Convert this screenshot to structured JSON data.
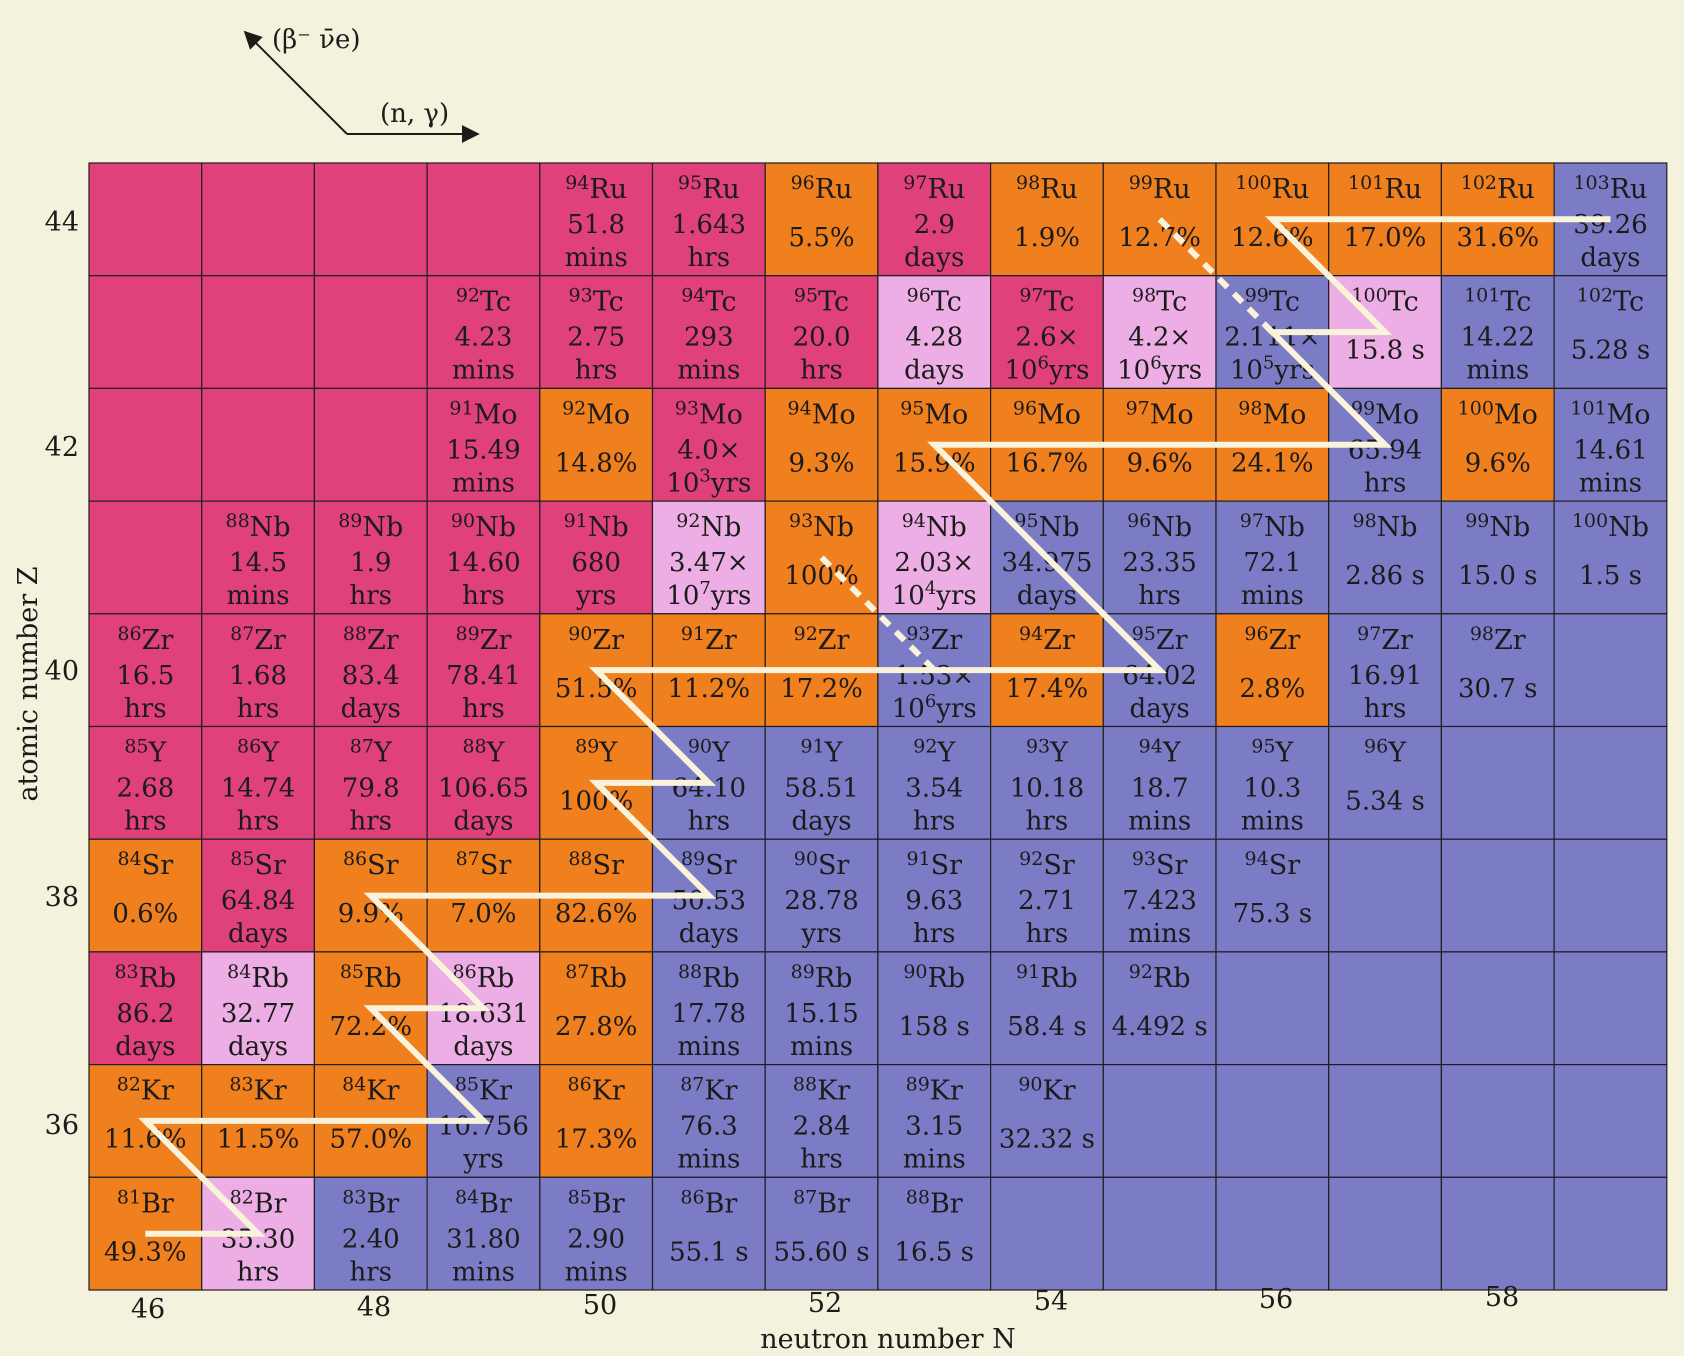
{
  "figure": {
    "legend": {
      "beta_label": "(β⁻ ν̄e)",
      "ng_label": "(n, γ)"
    },
    "xlabel": "neutron number N",
    "ylabel": "atomic number Z",
    "x_ticks": [
      "46",
      "48",
      "50",
      "52",
      "54",
      "56",
      "58"
    ],
    "y_ticks": [
      "36",
      "38",
      "40",
      "42",
      "44"
    ]
  },
  "colors": {
    "stable": "#f07f1e",
    "proton_rich": "#e0417a",
    "long_lived": "#ecaee4",
    "neutron_rich": "#7c7cc6",
    "path": "#f8f3da"
  },
  "chart_data": {
    "type": "heatmap",
    "n_range": [
      46,
      59
    ],
    "z_range": [
      35,
      44
    ],
    "elements": {
      "35": "Br",
      "36": "Kr",
      "37": "Rb",
      "38": "Sr",
      "39": "Y",
      "40": "Zr",
      "41": "Nb",
      "42": "Mo",
      "43": "Tc",
      "44": "Ru"
    },
    "cells": [
      {
        "z": 44,
        "n": 50,
        "a": "94",
        "el": "Ru",
        "l1": "51.8",
        "l2": "mins",
        "cat": "proton_rich"
      },
      {
        "z": 44,
        "n": 51,
        "a": "95",
        "el": "Ru",
        "l1": "1.643",
        "l2": "hrs",
        "cat": "proton_rich"
      },
      {
        "z": 44,
        "n": 52,
        "a": "96",
        "el": "Ru",
        "l1": "5.5%",
        "l2": "",
        "cat": "stable"
      },
      {
        "z": 44,
        "n": 53,
        "a": "97",
        "el": "Ru",
        "l1": "2.9",
        "l2": "days",
        "cat": "proton_rich"
      },
      {
        "z": 44,
        "n": 54,
        "a": "98",
        "el": "Ru",
        "l1": "1.9%",
        "l2": "",
        "cat": "stable"
      },
      {
        "z": 44,
        "n": 55,
        "a": "99",
        "el": "Ru",
        "l1": "12.7%",
        "l2": "",
        "cat": "stable"
      },
      {
        "z": 44,
        "n": 56,
        "a": "100",
        "el": "Ru",
        "l1": "12.6%",
        "l2": "",
        "cat": "stable"
      },
      {
        "z": 44,
        "n": 57,
        "a": "101",
        "el": "Ru",
        "l1": "17.0%",
        "l2": "",
        "cat": "stable"
      },
      {
        "z": 44,
        "n": 58,
        "a": "102",
        "el": "Ru",
        "l1": "31.6%",
        "l2": "",
        "cat": "stable"
      },
      {
        "z": 44,
        "n": 59,
        "a": "103",
        "el": "Ru",
        "l1": "39.26",
        "l2": "days",
        "cat": "neutron_rich"
      },
      {
        "z": 43,
        "n": 49,
        "a": "92",
        "el": "Tc",
        "l1": "4.23",
        "l2": "mins",
        "cat": "proton_rich"
      },
      {
        "z": 43,
        "n": 50,
        "a": "93",
        "el": "Tc",
        "l1": "2.75",
        "l2": "hrs",
        "cat": "proton_rich"
      },
      {
        "z": 43,
        "n": 51,
        "a": "94",
        "el": "Tc",
        "l1": "293",
        "l2": "mins",
        "cat": "proton_rich"
      },
      {
        "z": 43,
        "n": 52,
        "a": "95",
        "el": "Tc",
        "l1": "20.0",
        "l2": "hrs",
        "cat": "proton_rich"
      },
      {
        "z": 43,
        "n": 53,
        "a": "96",
        "el": "Tc",
        "l1": "4.28",
        "l2": "days",
        "cat": "long_lived"
      },
      {
        "z": 43,
        "n": 54,
        "a": "97",
        "el": "Tc",
        "l1": "2.6×",
        "l2": "10",
        "l2sup": "6",
        "l2tail": "yrs",
        "cat": "proton_rich"
      },
      {
        "z": 43,
        "n": 55,
        "a": "98",
        "el": "Tc",
        "l1": "4.2×",
        "l2": "10",
        "l2sup": "6",
        "l2tail": "yrs",
        "cat": "long_lived"
      },
      {
        "z": 43,
        "n": 56,
        "a": "99",
        "el": "Tc",
        "l1": "2.111×",
        "l2": "10",
        "l2sup": "5",
        "l2tail": "yrs",
        "cat": "neutron_rich"
      },
      {
        "z": 43,
        "n": 57,
        "a": "100",
        "el": "Tc",
        "l1": "15.8 s",
        "l2": "",
        "cat": "long_lived"
      },
      {
        "z": 43,
        "n": 58,
        "a": "101",
        "el": "Tc",
        "l1": "14.22",
        "l2": "mins",
        "cat": "neutron_rich"
      },
      {
        "z": 43,
        "n": 59,
        "a": "102",
        "el": "Tc",
        "l1": "5.28 s",
        "l2": "",
        "cat": "neutron_rich"
      },
      {
        "z": 42,
        "n": 49,
        "a": "91",
        "el": "Mo",
        "l1": "15.49",
        "l2": "mins",
        "cat": "proton_rich"
      },
      {
        "z": 42,
        "n": 50,
        "a": "92",
        "el": "Mo",
        "l1": "14.8%",
        "l2": "",
        "cat": "stable"
      },
      {
        "z": 42,
        "n": 51,
        "a": "93",
        "el": "Mo",
        "l1": "4.0×",
        "l2": "10",
        "l2sup": "3",
        "l2tail": "yrs",
        "cat": "proton_rich"
      },
      {
        "z": 42,
        "n": 52,
        "a": "94",
        "el": "Mo",
        "l1": "9.3%",
        "l2": "",
        "cat": "stable"
      },
      {
        "z": 42,
        "n": 53,
        "a": "95",
        "el": "Mo",
        "l1": "15.9%",
        "l2": "",
        "cat": "stable"
      },
      {
        "z": 42,
        "n": 54,
        "a": "96",
        "el": "Mo",
        "l1": "16.7%",
        "l2": "",
        "cat": "stable"
      },
      {
        "z": 42,
        "n": 55,
        "a": "97",
        "el": "Mo",
        "l1": "9.6%",
        "l2": "",
        "cat": "stable"
      },
      {
        "z": 42,
        "n": 56,
        "a": "98",
        "el": "Mo",
        "l1": "24.1%",
        "l2": "",
        "cat": "stable"
      },
      {
        "z": 42,
        "n": 57,
        "a": "99",
        "el": "Mo",
        "l1": "65.94",
        "l2": "hrs",
        "cat": "neutron_rich"
      },
      {
        "z": 42,
        "n": 58,
        "a": "100",
        "el": "Mo",
        "l1": "9.6%",
        "l2": "",
        "cat": "stable"
      },
      {
        "z": 42,
        "n": 59,
        "a": "101",
        "el": "Mo",
        "l1": "14.61",
        "l2": "mins",
        "cat": "neutron_rich"
      },
      {
        "z": 41,
        "n": 47,
        "a": "88",
        "el": "Nb",
        "l1": "14.5",
        "l2": "mins",
        "cat": "proton_rich"
      },
      {
        "z": 41,
        "n": 48,
        "a": "89",
        "el": "Nb",
        "l1": "1.9",
        "l2": "hrs",
        "cat": "proton_rich"
      },
      {
        "z": 41,
        "n": 49,
        "a": "90",
        "el": "Nb",
        "l1": "14.60",
        "l2": "hrs",
        "cat": "proton_rich"
      },
      {
        "z": 41,
        "n": 50,
        "a": "91",
        "el": "Nb",
        "l1": "680",
        "l2": "yrs",
        "cat": "proton_rich"
      },
      {
        "z": 41,
        "n": 51,
        "a": "92",
        "el": "Nb",
        "l1": "3.47×",
        "l2": "10",
        "l2sup": "7",
        "l2tail": "yrs",
        "cat": "long_lived"
      },
      {
        "z": 41,
        "n": 52,
        "a": "93",
        "el": "Nb",
        "l1": "100%",
        "l2": "",
        "cat": "stable"
      },
      {
        "z": 41,
        "n": 53,
        "a": "94",
        "el": "Nb",
        "l1": "2.03×",
        "l2": "10",
        "l2sup": "4",
        "l2tail": "yrs",
        "cat": "long_lived"
      },
      {
        "z": 41,
        "n": 54,
        "a": "95",
        "el": "Nb",
        "l1": "34.975",
        "l2": "days",
        "cat": "neutron_rich"
      },
      {
        "z": 41,
        "n": 55,
        "a": "96",
        "el": "Nb",
        "l1": "23.35",
        "l2": "hrs",
        "cat": "neutron_rich"
      },
      {
        "z": 41,
        "n": 56,
        "a": "97",
        "el": "Nb",
        "l1": "72.1",
        "l2": "mins",
        "cat": "neutron_rich"
      },
      {
        "z": 41,
        "n": 57,
        "a": "98",
        "el": "Nb",
        "l1": "2.86 s",
        "l2": "",
        "cat": "neutron_rich"
      },
      {
        "z": 41,
        "n": 58,
        "a": "99",
        "el": "Nb",
        "l1": "15.0 s",
        "l2": "",
        "cat": "neutron_rich"
      },
      {
        "z": 41,
        "n": 59,
        "a": "100",
        "el": "Nb",
        "l1": "1.5 s",
        "l2": "",
        "cat": "neutron_rich"
      },
      {
        "z": 40,
        "n": 46,
        "a": "86",
        "el": "Zr",
        "l1": "16.5",
        "l2": "hrs",
        "cat": "proton_rich"
      },
      {
        "z": 40,
        "n": 47,
        "a": "87",
        "el": "Zr",
        "l1": "1.68",
        "l2": "hrs",
        "cat": "proton_rich"
      },
      {
        "z": 40,
        "n": 48,
        "a": "88",
        "el": "Zr",
        "l1": "83.4",
        "l2": "days",
        "cat": "proton_rich"
      },
      {
        "z": 40,
        "n": 49,
        "a": "89",
        "el": "Zr",
        "l1": "78.41",
        "l2": "hrs",
        "cat": "proton_rich"
      },
      {
        "z": 40,
        "n": 50,
        "a": "90",
        "el": "Zr",
        "l1": "51.5%",
        "l2": "",
        "cat": "stable"
      },
      {
        "z": 40,
        "n": 51,
        "a": "91",
        "el": "Zr",
        "l1": "11.2%",
        "l2": "",
        "cat": "stable"
      },
      {
        "z": 40,
        "n": 52,
        "a": "92",
        "el": "Zr",
        "l1": "17.2%",
        "l2": "",
        "cat": "stable"
      },
      {
        "z": 40,
        "n": 53,
        "a": "93",
        "el": "Zr",
        "l1": "1.53×",
        "l2": "10",
        "l2sup": "6",
        "l2tail": "yrs",
        "cat": "neutron_rich"
      },
      {
        "z": 40,
        "n": 54,
        "a": "94",
        "el": "Zr",
        "l1": "17.4%",
        "l2": "",
        "cat": "stable"
      },
      {
        "z": 40,
        "n": 55,
        "a": "95",
        "el": "Zr",
        "l1": "64.02",
        "l2": "days",
        "cat": "neutron_rich"
      },
      {
        "z": 40,
        "n": 56,
        "a": "96",
        "el": "Zr",
        "l1": "2.8%",
        "l2": "",
        "cat": "stable"
      },
      {
        "z": 40,
        "n": 57,
        "a": "97",
        "el": "Zr",
        "l1": "16.91",
        "l2": "hrs",
        "cat": "neutron_rich"
      },
      {
        "z": 40,
        "n": 58,
        "a": "98",
        "el": "Zr",
        "l1": "30.7 s",
        "l2": "",
        "cat": "neutron_rich"
      },
      {
        "z": 39,
        "n": 46,
        "a": "85",
        "el": "Y",
        "l1": "2.68",
        "l2": "hrs",
        "cat": "proton_rich"
      },
      {
        "z": 39,
        "n": 47,
        "a": "86",
        "el": "Y",
        "l1": "14.74",
        "l2": "hrs",
        "cat": "proton_rich"
      },
      {
        "z": 39,
        "n": 48,
        "a": "87",
        "el": "Y",
        "l1": "79.8",
        "l2": "hrs",
        "cat": "proton_rich"
      },
      {
        "z": 39,
        "n": 49,
        "a": "88",
        "el": "Y",
        "l1": "106.65",
        "l2": "days",
        "cat": "proton_rich"
      },
      {
        "z": 39,
        "n": 50,
        "a": "89",
        "el": "Y",
        "l1": "100%",
        "l2": "",
        "cat": "stable"
      },
      {
        "z": 39,
        "n": 51,
        "a": "90",
        "el": "Y",
        "l1": "64.10",
        "l2": "hrs",
        "cat": "neutron_rich"
      },
      {
        "z": 39,
        "n": 52,
        "a": "91",
        "el": "Y",
        "l1": "58.51",
        "l2": "days",
        "cat": "neutron_rich"
      },
      {
        "z": 39,
        "n": 53,
        "a": "92",
        "el": "Y",
        "l1": "3.54",
        "l2": "hrs",
        "cat": "neutron_rich"
      },
      {
        "z": 39,
        "n": 54,
        "a": "93",
        "el": "Y",
        "l1": "10.18",
        "l2": "hrs",
        "cat": "neutron_rich"
      },
      {
        "z": 39,
        "n": 55,
        "a": "94",
        "el": "Y",
        "l1": "18.7",
        "l2": "mins",
        "cat": "neutron_rich"
      },
      {
        "z": 39,
        "n": 56,
        "a": "95",
        "el": "Y",
        "l1": "10.3",
        "l2": "mins",
        "cat": "neutron_rich"
      },
      {
        "z": 39,
        "n": 57,
        "a": "96",
        "el": "Y",
        "l1": "5.34 s",
        "l2": "",
        "cat": "neutron_rich"
      },
      {
        "z": 38,
        "n": 46,
        "a": "84",
        "el": "Sr",
        "l1": "0.6%",
        "l2": "",
        "cat": "stable"
      },
      {
        "z": 38,
        "n": 47,
        "a": "85",
        "el": "Sr",
        "l1": "64.84",
        "l2": "days",
        "cat": "proton_rich"
      },
      {
        "z": 38,
        "n": 48,
        "a": "86",
        "el": "Sr",
        "l1": "9.9%",
        "l2": "",
        "cat": "stable"
      },
      {
        "z": 38,
        "n": 49,
        "a": "87",
        "el": "Sr",
        "l1": "7.0%",
        "l2": "",
        "cat": "stable"
      },
      {
        "z": 38,
        "n": 50,
        "a": "88",
        "el": "Sr",
        "l1": "82.6%",
        "l2": "",
        "cat": "stable"
      },
      {
        "z": 38,
        "n": 51,
        "a": "89",
        "el": "Sr",
        "l1": "50.53",
        "l2": "days",
        "cat": "neutron_rich"
      },
      {
        "z": 38,
        "n": 52,
        "a": "90",
        "el": "Sr",
        "l1": "28.78",
        "l2": "yrs",
        "cat": "neutron_rich"
      },
      {
        "z": 38,
        "n": 53,
        "a": "91",
        "el": "Sr",
        "l1": "9.63",
        "l2": "hrs",
        "cat": "neutron_rich"
      },
      {
        "z": 38,
        "n": 54,
        "a": "92",
        "el": "Sr",
        "l1": "2.71",
        "l2": "hrs",
        "cat": "neutron_rich"
      },
      {
        "z": 38,
        "n": 55,
        "a": "93",
        "el": "Sr",
        "l1": "7.423",
        "l2": "mins",
        "cat": "neutron_rich"
      },
      {
        "z": 38,
        "n": 56,
        "a": "94",
        "el": "Sr",
        "l1": "75.3 s",
        "l2": "",
        "cat": "neutron_rich"
      },
      {
        "z": 37,
        "n": 46,
        "a": "83",
        "el": "Rb",
        "l1": "86.2",
        "l2": "days",
        "cat": "proton_rich"
      },
      {
        "z": 37,
        "n": 47,
        "a": "84",
        "el": "Rb",
        "l1": "32.77",
        "l2": "days",
        "cat": "long_lived"
      },
      {
        "z": 37,
        "n": 48,
        "a": "85",
        "el": "Rb",
        "l1": "72.2%",
        "l2": "",
        "cat": "stable"
      },
      {
        "z": 37,
        "n": 49,
        "a": "86",
        "el": "Rb",
        "l1": "18.631",
        "l2": "days",
        "cat": "long_lived"
      },
      {
        "z": 37,
        "n": 50,
        "a": "87",
        "el": "Rb",
        "l1": "27.8%",
        "l2": "",
        "cat": "stable"
      },
      {
        "z": 37,
        "n": 51,
        "a": "88",
        "el": "Rb",
        "l1": "17.78",
        "l2": "mins",
        "cat": "neutron_rich"
      },
      {
        "z": 37,
        "n": 52,
        "a": "89",
        "el": "Rb",
        "l1": "15.15",
        "l2": "mins",
        "cat": "neutron_rich"
      },
      {
        "z": 37,
        "n": 53,
        "a": "90",
        "el": "Rb",
        "l1": "158 s",
        "l2": "",
        "cat": "neutron_rich"
      },
      {
        "z": 37,
        "n": 54,
        "a": "91",
        "el": "Rb",
        "l1": "58.4 s",
        "l2": "",
        "cat": "neutron_rich"
      },
      {
        "z": 37,
        "n": 55,
        "a": "92",
        "el": "Rb",
        "l1": "4.492 s",
        "l2": "",
        "cat": "neutron_rich"
      },
      {
        "z": 36,
        "n": 46,
        "a": "82",
        "el": "Kr",
        "l1": "11.6%",
        "l2": "",
        "cat": "stable"
      },
      {
        "z": 36,
        "n": 47,
        "a": "83",
        "el": "Kr",
        "l1": "11.5%",
        "l2": "",
        "cat": "stable"
      },
      {
        "z": 36,
        "n": 48,
        "a": "84",
        "el": "Kr",
        "l1": "57.0%",
        "l2": "",
        "cat": "stable"
      },
      {
        "z": 36,
        "n": 49,
        "a": "85",
        "el": "Kr",
        "l1": "10.756",
        "l2": "yrs",
        "cat": "neutron_rich"
      },
      {
        "z": 36,
        "n": 50,
        "a": "86",
        "el": "Kr",
        "l1": "17.3%",
        "l2": "",
        "cat": "stable"
      },
      {
        "z": 36,
        "n": 51,
        "a": "87",
        "el": "Kr",
        "l1": "76.3",
        "l2": "mins",
        "cat": "neutron_rich"
      },
      {
        "z": 36,
        "n": 52,
        "a": "88",
        "el": "Kr",
        "l1": "2.84",
        "l2": "hrs",
        "cat": "neutron_rich"
      },
      {
        "z": 36,
        "n": 53,
        "a": "89",
        "el": "Kr",
        "l1": "3.15",
        "l2": "mins",
        "cat": "neutron_rich"
      },
      {
        "z": 36,
        "n": 54,
        "a": "90",
        "el": "Kr",
        "l1": "32.32 s",
        "l2": "",
        "cat": "neutron_rich"
      },
      {
        "z": 35,
        "n": 46,
        "a": "81",
        "el": "Br",
        "l1": "49.3%",
        "l2": "",
        "cat": "stable"
      },
      {
        "z": 35,
        "n": 47,
        "a": "82",
        "el": "Br",
        "l1": "35.30",
        "l2": "hrs",
        "cat": "long_lived"
      },
      {
        "z": 35,
        "n": 48,
        "a": "83",
        "el": "Br",
        "l1": "2.40",
        "l2": "hrs",
        "cat": "neutron_rich"
      },
      {
        "z": 35,
        "n": 49,
        "a": "84",
        "el": "Br",
        "l1": "31.80",
        "l2": "mins",
        "cat": "neutron_rich"
      },
      {
        "z": 35,
        "n": 50,
        "a": "85",
        "el": "Br",
        "l1": "2.90",
        "l2": "mins",
        "cat": "neutron_rich"
      },
      {
        "z": 35,
        "n": 51,
        "a": "86",
        "el": "Br",
        "l1": "55.1 s",
        "l2": "",
        "cat": "neutron_rich"
      },
      {
        "z": 35,
        "n": 52,
        "a": "87",
        "el": "Br",
        "l1": "55.60 s",
        "l2": "",
        "cat": "neutron_rich"
      },
      {
        "z": 35,
        "n": 53,
        "a": "88",
        "el": "Br",
        "l1": "16.5 s",
        "l2": "",
        "cat": "neutron_rich"
      }
    ],
    "s_process_path": [
      [
        [
          46,
          35
        ],
        [
          47,
          35
        ],
        [
          46,
          36
        ],
        [
          49,
          36
        ],
        [
          48,
          37
        ],
        [
          49,
          37
        ],
        [
          48,
          38
        ],
        [
          51,
          38
        ],
        [
          50,
          39
        ],
        [
          51,
          39
        ],
        [
          50,
          40
        ],
        [
          55,
          40
        ],
        [
          54,
          41
        ],
        [
          53,
          42
        ],
        [
          57,
          42
        ],
        [
          56,
          43
        ],
        [
          57,
          43
        ],
        [
          56,
          44
        ],
        [
          59,
          44
        ]
      ]
    ],
    "branch_paths_dashed": [
      [
        [
          52,
          41
        ],
        [
          53,
          40
        ]
      ],
      [
        [
          55,
          44
        ],
        [
          56,
          43
        ]
      ]
    ]
  }
}
